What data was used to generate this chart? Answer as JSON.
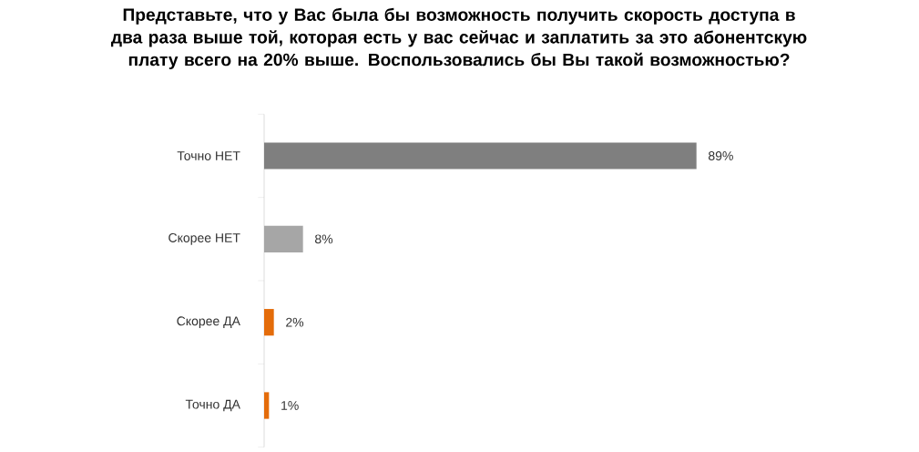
{
  "chart_data": {
    "type": "bar",
    "orientation": "horizontal",
    "title": "Представьте, что у Вас была бы возможность получить скорость доступа в два раза выше той, которая есть у вас сейчас и заплатить за это абонентскую плату всего на 20% выше. Воспользовались бы Вы такой возможностью?",
    "categories": [
      "Точно НЕТ",
      "Скорее НЕТ",
      "Скорее ДА",
      "Точно ДА"
    ],
    "values": [
      89,
      8,
      2,
      1
    ],
    "value_labels": [
      "89%",
      "8%",
      "2%",
      "1%"
    ],
    "colors": [
      "#7f7f7f",
      "#a6a6a6",
      "#e46c0a",
      "#e46c0a"
    ]
  }
}
